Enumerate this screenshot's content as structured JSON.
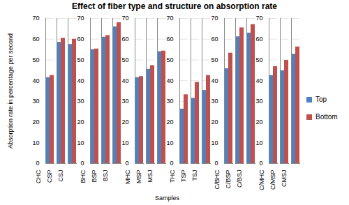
{
  "chart_data": {
    "type": "bar",
    "title": "Effect of fiber type and structure on absorption rate",
    "x_label": "Samples",
    "y_label": "Absorption rate in percentage per second",
    "categories": [
      "CHC",
      "CSP",
      "CSJ",
      null,
      "BHC",
      "BSP",
      "BSJ",
      null,
      "MHC",
      "MSP",
      "MSJ",
      null,
      "THC",
      "TSP",
      "TSJ",
      null,
      "C/BHC",
      "C/BSP",
      "C/BSJ",
      null,
      "C/MHC",
      "C/MSP",
      "CMSJ",
      null
    ],
    "series": [
      {
        "name": "Top",
        "color": "#4f81bd",
        "values": [
          null,
          41.5,
          58.5,
          57.5,
          null,
          55,
          61,
          66,
          null,
          41.5,
          45.5,
          54,
          null,
          26.3,
          31.5,
          35.3,
          null,
          45.8,
          61.2,
          63,
          null,
          42.5,
          44.8,
          52.8
        ]
      },
      {
        "name": "Bottom",
        "color": "#c0504d",
        "values": [
          null,
          42.5,
          60.5,
          60,
          null,
          55.3,
          61.8,
          68,
          null,
          42,
          47.3,
          54.3,
          null,
          33.2,
          39.2,
          42.5,
          null,
          53.3,
          65.5,
          67.1,
          null,
          46.8,
          49.8,
          56.3
        ]
      }
    ],
    "ylim": [
      0,
      70
    ],
    "yticks": [
      0,
      10,
      20,
      30,
      40,
      50,
      60,
      70
    ],
    "grid": true,
    "legend": "right"
  }
}
